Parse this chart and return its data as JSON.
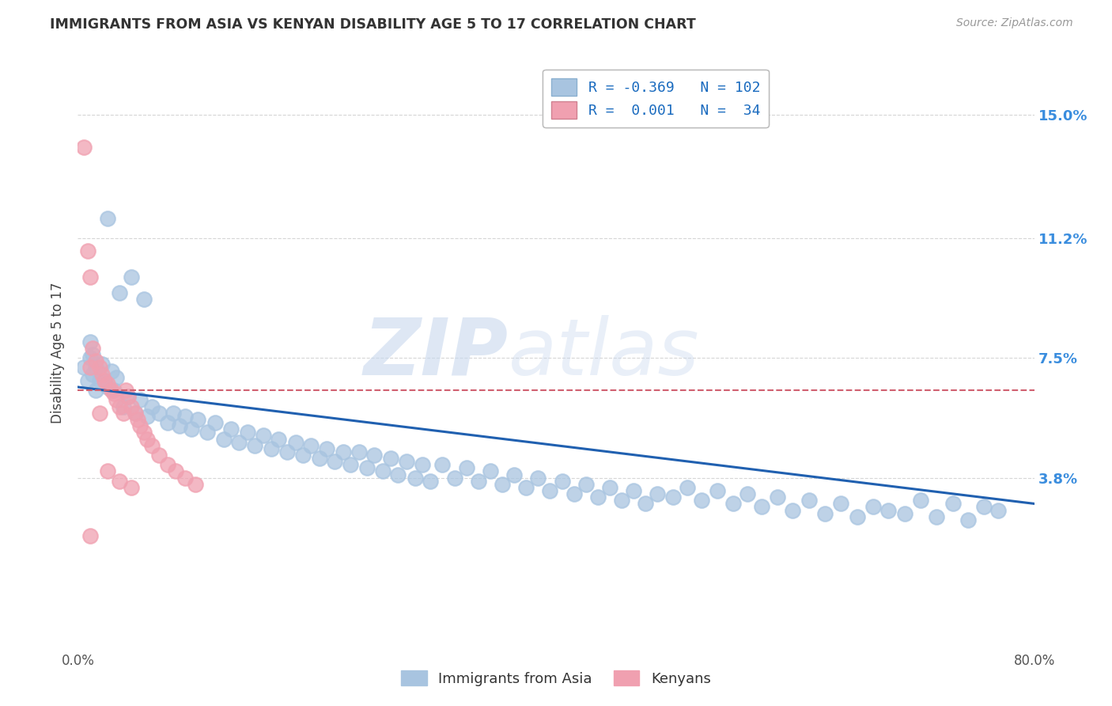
{
  "title": "IMMIGRANTS FROM ASIA VS KENYAN DISABILITY AGE 5 TO 17 CORRELATION CHART",
  "source": "Source: ZipAtlas.com",
  "ylabel": "Disability Age 5 to 17",
  "legend_entry1_r": "R = -0.369",
  "legend_entry1_n": "N = 102",
  "legend_entry2_r": "R =  0.001",
  "legend_entry2_n": "N =  34",
  "scatter_blue_color": "#a8c4e0",
  "scatter_pink_color": "#f0a0b0",
  "trend_blue_color": "#2060b0",
  "trend_pink_color": "#d06070",
  "watermark_zip": "ZIP",
  "watermark_atlas": "atlas",
  "background_color": "#ffffff",
  "grid_color": "#cccccc",
  "xlim": [
    0.0,
    0.8
  ],
  "ylim": [
    -0.015,
    0.168
  ],
  "ytick_vals": [
    0.038,
    0.075,
    0.112,
    0.15
  ],
  "ytick_labels": [
    "3.8%",
    "7.5%",
    "11.2%",
    "15.0%"
  ],
  "xtick_left_label": "0.0%",
  "xtick_right_label": "80.0%",
  "trend_blue_x0": 0.0,
  "trend_blue_y0": 0.066,
  "trend_blue_x1": 0.8,
  "trend_blue_y1": 0.03,
  "trend_pink_y": 0.065,
  "blue_x": [
    0.005,
    0.008,
    0.01,
    0.012,
    0.015,
    0.01,
    0.012,
    0.015,
    0.018,
    0.02,
    0.022,
    0.025,
    0.028,
    0.03,
    0.032,
    0.038,
    0.042,
    0.048,
    0.052,
    0.058,
    0.062,
    0.068,
    0.075,
    0.08,
    0.085,
    0.09,
    0.095,
    0.1,
    0.108,
    0.115,
    0.122,
    0.128,
    0.135,
    0.142,
    0.148,
    0.155,
    0.162,
    0.168,
    0.175,
    0.182,
    0.188,
    0.195,
    0.202,
    0.208,
    0.215,
    0.222,
    0.228,
    0.235,
    0.242,
    0.248,
    0.255,
    0.262,
    0.268,
    0.275,
    0.282,
    0.288,
    0.295,
    0.305,
    0.315,
    0.325,
    0.335,
    0.345,
    0.355,
    0.365,
    0.375,
    0.385,
    0.395,
    0.405,
    0.415,
    0.425,
    0.435,
    0.445,
    0.455,
    0.465,
    0.475,
    0.485,
    0.498,
    0.51,
    0.522,
    0.535,
    0.548,
    0.56,
    0.572,
    0.585,
    0.598,
    0.612,
    0.625,
    0.638,
    0.652,
    0.665,
    0.678,
    0.692,
    0.705,
    0.718,
    0.732,
    0.745,
    0.758,
    0.77,
    0.025,
    0.035,
    0.045,
    0.055
  ],
  "blue_y": [
    0.072,
    0.068,
    0.075,
    0.07,
    0.065,
    0.08,
    0.076,
    0.072,
    0.068,
    0.073,
    0.068,
    0.066,
    0.071,
    0.065,
    0.069,
    0.06,
    0.063,
    0.058,
    0.062,
    0.057,
    0.06,
    0.058,
    0.055,
    0.058,
    0.054,
    0.057,
    0.053,
    0.056,
    0.052,
    0.055,
    0.05,
    0.053,
    0.049,
    0.052,
    0.048,
    0.051,
    0.047,
    0.05,
    0.046,
    0.049,
    0.045,
    0.048,
    0.044,
    0.047,
    0.043,
    0.046,
    0.042,
    0.046,
    0.041,
    0.045,
    0.04,
    0.044,
    0.039,
    0.043,
    0.038,
    0.042,
    0.037,
    0.042,
    0.038,
    0.041,
    0.037,
    0.04,
    0.036,
    0.039,
    0.035,
    0.038,
    0.034,
    0.037,
    0.033,
    0.036,
    0.032,
    0.035,
    0.031,
    0.034,
    0.03,
    0.033,
    0.032,
    0.035,
    0.031,
    0.034,
    0.03,
    0.033,
    0.029,
    0.032,
    0.028,
    0.031,
    0.027,
    0.03,
    0.026,
    0.029,
    0.028,
    0.027,
    0.031,
    0.026,
    0.03,
    0.025,
    0.029,
    0.028,
    0.118,
    0.095,
    0.1,
    0.093
  ],
  "pink_x": [
    0.005,
    0.008,
    0.01,
    0.012,
    0.015,
    0.018,
    0.02,
    0.022,
    0.025,
    0.028,
    0.03,
    0.032,
    0.035,
    0.038,
    0.04,
    0.042,
    0.045,
    0.048,
    0.05,
    0.052,
    0.055,
    0.058,
    0.062,
    0.068,
    0.075,
    0.082,
    0.09,
    0.098,
    0.01,
    0.018,
    0.025,
    0.035,
    0.045,
    0.01
  ],
  "pink_y": [
    0.14,
    0.108,
    0.1,
    0.078,
    0.074,
    0.072,
    0.07,
    0.068,
    0.067,
    0.065,
    0.064,
    0.062,
    0.06,
    0.058,
    0.065,
    0.063,
    0.06,
    0.058,
    0.056,
    0.054,
    0.052,
    0.05,
    0.048,
    0.045,
    0.042,
    0.04,
    0.038,
    0.036,
    0.072,
    0.058,
    0.04,
    0.037,
    0.035,
    0.02
  ]
}
